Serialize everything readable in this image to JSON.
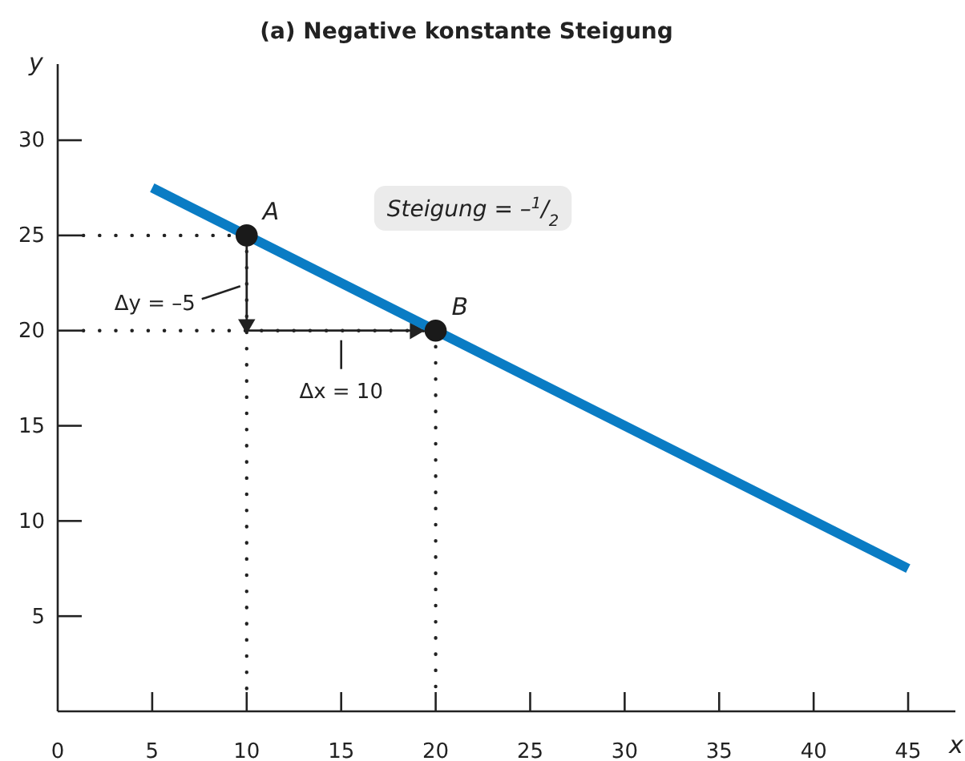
{
  "chart_data": {
    "type": "line",
    "title": "(a) Negative konstante Steigung",
    "xlabel": "x",
    "ylabel": "y",
    "xlim": [
      0,
      47.5
    ],
    "ylim": [
      0,
      34
    ],
    "xticks": [
      0,
      5,
      10,
      15,
      20,
      25,
      30,
      35,
      40,
      45
    ],
    "yticks": [
      5,
      10,
      15,
      20,
      25,
      30
    ],
    "grid": false,
    "series": [
      {
        "color": "#0a7cc4",
        "x": [
          5,
          45
        ],
        "values": [
          27.5,
          7.5
        ]
      },
      {
        "type": "scatter",
        "color": "#1a1a1a",
        "marker": "circle",
        "x": [
          10,
          20
        ],
        "values": [
          25,
          20
        ]
      }
    ],
    "annotations": [
      {
        "text": "A",
        "x": 10,
        "y": 25
      },
      {
        "text": "B",
        "x": 20,
        "y": 20
      },
      "Δy = –5",
      "Δx = 10",
      "Steigung = –$^{1}$/$_{2}$"
    ]
  }
}
